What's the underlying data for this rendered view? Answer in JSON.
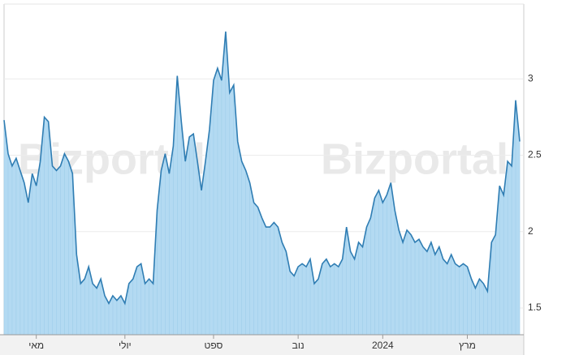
{
  "chart_data": {
    "type": "area",
    "watermark": "Bizportal",
    "color": "#2f7db3",
    "fill": "#b3daf2",
    "xlim": [
      0,
      128
    ],
    "xticks": [
      {
        "value": 8,
        "label": "מאי"
      },
      {
        "value": 30,
        "label": "יולי"
      },
      {
        "value": 52,
        "label": "ספט"
      },
      {
        "value": 73,
        "label": "נוב"
      },
      {
        "value": 94,
        "label": "2024"
      },
      {
        "value": 115,
        "label": "מרץ"
      }
    ],
    "ylim": [
      1.325,
      3.49
    ],
    "yticks": [
      1.5,
      2,
      2.5,
      3
    ],
    "grid": true,
    "values": [
      2.73,
      2.51,
      2.43,
      2.48,
      2.4,
      2.32,
      2.19,
      2.38,
      2.3,
      2.46,
      2.75,
      2.72,
      2.43,
      2.4,
      2.43,
      2.51,
      2.46,
      2.38,
      1.85,
      1.66,
      1.69,
      1.77,
      1.66,
      1.63,
      1.69,
      1.58,
      1.53,
      1.58,
      1.55,
      1.58,
      1.53,
      1.66,
      1.69,
      1.77,
      1.79,
      1.66,
      1.69,
      1.66,
      2.14,
      2.4,
      2.51,
      2.38,
      2.56,
      3.02,
      2.72,
      2.46,
      2.62,
      2.64,
      2.46,
      2.27,
      2.46,
      2.67,
      2.99,
      3.07,
      2.99,
      3.31,
      2.91,
      2.96,
      2.59,
      2.46,
      2.4,
      2.32,
      2.19,
      2.16,
      2.09,
      2.03,
      2.03,
      2.06,
      2.03,
      1.93,
      1.87,
      1.74,
      1.71,
      1.77,
      1.79,
      1.77,
      1.82,
      1.66,
      1.69,
      1.79,
      1.82,
      1.77,
      1.79,
      1.77,
      1.82,
      2.03,
      1.87,
      1.82,
      1.93,
      1.9,
      2.03,
      2.09,
      2.22,
      2.27,
      2.19,
      2.24,
      2.32,
      2.14,
      2.01,
      1.93,
      2.01,
      1.98,
      1.93,
      1.95,
      1.9,
      1.87,
      1.93,
      1.85,
      1.9,
      1.82,
      1.79,
      1.85,
      1.79,
      1.77,
      1.79,
      1.77,
      1.69,
      1.63,
      1.69,
      1.66,
      1.61,
      1.93,
      1.98,
      2.3,
      2.24,
      2.46,
      2.43,
      2.86,
      2.59
    ]
  }
}
